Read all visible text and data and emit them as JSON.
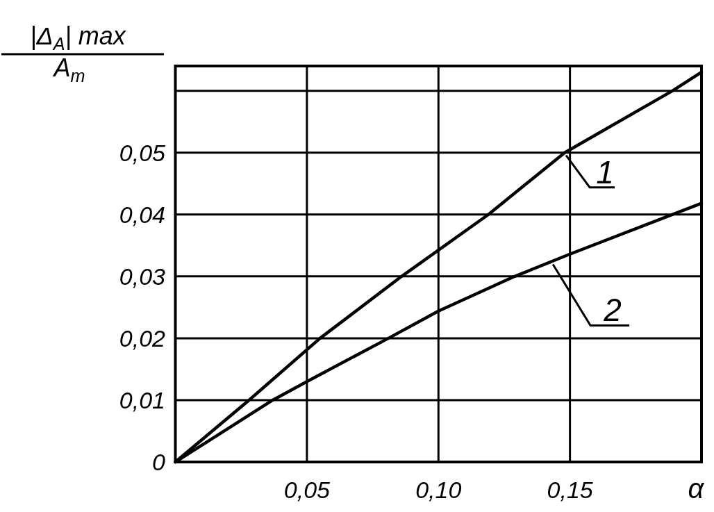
{
  "chart_data": {
    "type": "line",
    "xlabel": "α",
    "ylabel": "|Δ$_{A}$| max\nA$_{m}$",
    "series": [
      {
        "name": "1",
        "color": "#000000",
        "x": [
          0,
          0.028,
          0.055,
          0.086,
          0.119,
          0.148,
          0.189,
          0.2
        ],
        "values": [
          0,
          0.01,
          0.02,
          0.03,
          0.04,
          0.05,
          0.06,
          0.063
        ]
      },
      {
        "name": "2",
        "color": "#000000",
        "x": [
          0,
          0.037,
          0.05,
          0.081,
          0.1,
          0.129,
          0.15,
          0.2
        ],
        "values": [
          0,
          0.01,
          0.013,
          0.02,
          0.0244,
          0.03,
          0.0336,
          0.0418
        ]
      }
    ],
    "xlim": [
      0,
      0.2
    ],
    "ylim": [
      0,
      0.064
    ],
    "xticks": [
      {
        "value": 0.05,
        "label": "0,05"
      },
      {
        "value": 0.1,
        "label": "0,10"
      },
      {
        "value": 0.15,
        "label": "0,15"
      }
    ],
    "yticks": [
      {
        "value": 0,
        "label": "0"
      },
      {
        "value": 0.01,
        "label": "0,01"
      },
      {
        "value": 0.02,
        "label": "0,02"
      },
      {
        "value": 0.03,
        "label": "0,03"
      },
      {
        "value": 0.04,
        "label": "0,04"
      },
      {
        "value": 0.05,
        "label": "0,05"
      },
      {
        "value": 0.06,
        "label": null
      }
    ],
    "grid": true
  }
}
